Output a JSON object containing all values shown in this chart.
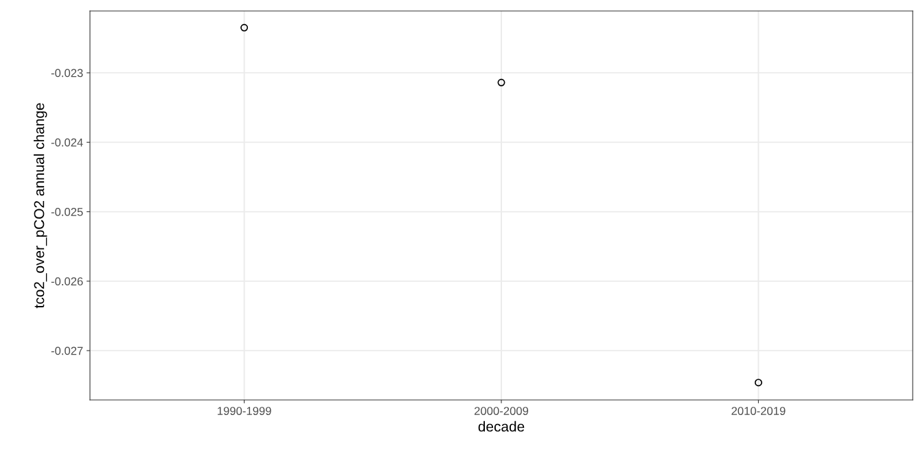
{
  "chart_data": {
    "type": "scatter",
    "xlabel": "decade",
    "ylabel": "tco2_over_pCO2 annual change",
    "categories": [
      "1990-1999",
      "2000-2009",
      "2010-2019"
    ],
    "series": [
      {
        "color": "#000000",
        "values": [
          -0.02235,
          -0.02314,
          -0.02746
        ]
      }
    ],
    "ylim": [
      -0.02771,
      -0.02211
    ],
    "yticks": [
      {
        "value": -0.027,
        "label": "-0.027"
      },
      {
        "value": -0.026,
        "label": "-0.026"
      },
      {
        "value": -0.025,
        "label": "-0.025"
      },
      {
        "value": -0.024,
        "label": "-0.024"
      },
      {
        "value": -0.023,
        "label": "-0.023"
      }
    ],
    "grid": true,
    "marker": "circle"
  }
}
